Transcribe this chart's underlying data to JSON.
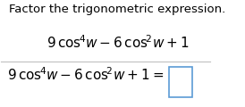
{
  "title": "Factor the trigonometric expression.",
  "bg_color": "#ffffff",
  "text_color": "#000000",
  "box_color": "#5b9bd5",
  "divider_color": "#c0c0c0",
  "title_fontsize": 9.5,
  "expr_fontsize": 11.0
}
